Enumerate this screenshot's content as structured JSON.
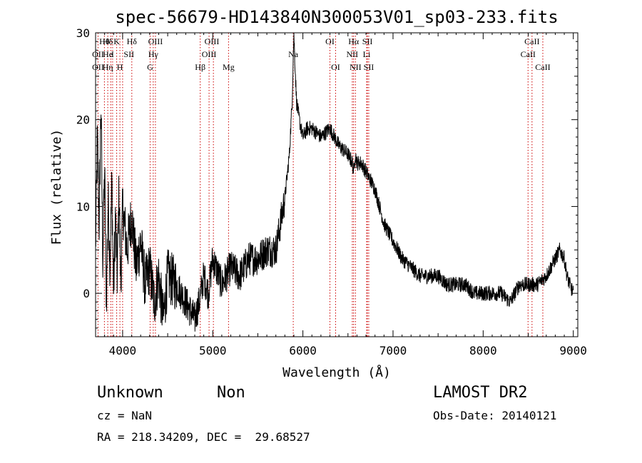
{
  "chart_data": {
    "type": "line",
    "title": "spec-56679-HD143840N300053V01_sp03-233.fits",
    "xlabel": "Wavelength (Å)",
    "ylabel": "Flux (relative)",
    "xlim": [
      3700,
      9050
    ],
    "ylim": [
      -5,
      30
    ],
    "xticks": [
      4000,
      5000,
      6000,
      7000,
      8000,
      9000
    ],
    "yticks": [
      0,
      10,
      20,
      30
    ],
    "line_color": "#000000",
    "marker_color": "#cc0000",
    "spectrum": {
      "x": [
        3700,
        3720,
        3740,
        3760,
        3780,
        3800,
        3820,
        3840,
        3860,
        3880,
        3900,
        3920,
        3940,
        3960,
        3980,
        4000,
        4050,
        4100,
        4150,
        4200,
        4250,
        4300,
        4350,
        4400,
        4450,
        4500,
        4600,
        4700,
        4800,
        4850,
        4900,
        4950,
        5000,
        5100,
        5200,
        5300,
        5400,
        5500,
        5600,
        5700,
        5750,
        5800,
        5850,
        5880,
        5890,
        5900,
        5910,
        5930,
        5960,
        6000,
        6050,
        6100,
        6200,
        6300,
        6400,
        6500,
        6550,
        6563,
        6580,
        6600,
        6650,
        6700,
        6750,
        6800,
        6850,
        6900,
        6950,
        7000,
        7100,
        7200,
        7300,
        7400,
        7500,
        7600,
        7700,
        7800,
        7900,
        8000,
        8100,
        8200,
        8300,
        8400,
        8500,
        8600,
        8700,
        8750,
        8800,
        8850,
        8900,
        8930,
        8960,
        9000
      ],
      "y": [
        5,
        18,
        8,
        22,
        4,
        14,
        -1,
        11,
        3,
        13,
        0,
        9,
        2,
        12,
        1,
        10,
        5,
        9,
        3,
        6,
        1,
        3,
        -1,
        2,
        -3,
        2,
        1,
        -1,
        -3,
        -1,
        2,
        0,
        4,
        1,
        3,
        2,
        4,
        4,
        5,
        5,
        8,
        11,
        16,
        22,
        26,
        30,
        27,
        22,
        20,
        18,
        19,
        19,
        18,
        19,
        17,
        16,
        15,
        14,
        16,
        15,
        15,
        14,
        13,
        12,
        10,
        8,
        7,
        6,
        4,
        3,
        2,
        2,
        2,
        1,
        1,
        1,
        0,
        0,
        0,
        0,
        -1,
        1,
        1,
        1,
        2,
        3,
        4,
        5,
        4,
        2,
        1,
        0
      ]
    },
    "marker_lines": [
      3727,
      3798,
      3835,
      3869,
      3889,
      3934,
      3970,
      4000,
      4102,
      4305,
      4340,
      4364,
      4861,
      4959,
      5007,
      5175,
      5893,
      6300,
      6363,
      6548,
      6563,
      6583,
      6707,
      6716,
      6731,
      8498,
      8542,
      8662
    ],
    "line_labels": [
      {
        "text": "Hθ",
        "x": 3798,
        "row": 0
      },
      {
        "text": "Hδ",
        "x": 3836,
        "row": 0
      },
      {
        "text": "K",
        "x": 3934,
        "row": 0
      },
      {
        "text": "Hδ",
        "x": 4102,
        "row": 0
      },
      {
        "text": "OIII",
        "x": 4364,
        "row": 0
      },
      {
        "text": "OIII",
        "x": 4990,
        "row": 0
      },
      {
        "text": "OI",
        "x": 6300,
        "row": 0
      },
      {
        "text": "Hα",
        "x": 6563,
        "row": 0
      },
      {
        "text": "SII",
        "x": 6716,
        "row": 0
      },
      {
        "text": "CaII",
        "x": 8542,
        "row": 0
      },
      {
        "text": "OII",
        "x": 3727,
        "row": 1
      },
      {
        "text": "He",
        "x": 3835,
        "row": 1
      },
      {
        "text": "I",
        "x": 3889,
        "row": 1
      },
      {
        "text": "SII",
        "x": 4070,
        "row": 1
      },
      {
        "text": "Hγ",
        "x": 4340,
        "row": 1
      },
      {
        "text": "OIII",
        "x": 4959,
        "row": 1
      },
      {
        "text": "Na",
        "x": 5893,
        "row": 1
      },
      {
        "text": "NII",
        "x": 6548,
        "row": 1
      },
      {
        "text": "Li",
        "x": 6707,
        "row": 1
      },
      {
        "text": "CaII",
        "x": 8498,
        "row": 1
      },
      {
        "text": "OII",
        "x": 3727,
        "row": 2
      },
      {
        "text": "Hη",
        "x": 3835,
        "row": 2
      },
      {
        "text": "H",
        "x": 3970,
        "row": 2
      },
      {
        "text": "G",
        "x": 4305,
        "row": 2
      },
      {
        "text": "Hβ",
        "x": 4861,
        "row": 2
      },
      {
        "text": "Mg",
        "x": 5175,
        "row": 2
      },
      {
        "text": "OI",
        "x": 6363,
        "row": 2
      },
      {
        "text": "NII",
        "x": 6583,
        "row": 2
      },
      {
        "text": "SII",
        "x": 6731,
        "row": 2
      },
      {
        "text": "CaII",
        "x": 8662,
        "row": 2
      }
    ]
  },
  "info": {
    "class": "Unknown",
    "subclass": "Non",
    "cz": "cz = NaN",
    "coords": "RA = 218.34209, DEC =  29.68527",
    "survey": "LAMOST DR2",
    "obs_date": "Obs-Date: 20140121"
  }
}
